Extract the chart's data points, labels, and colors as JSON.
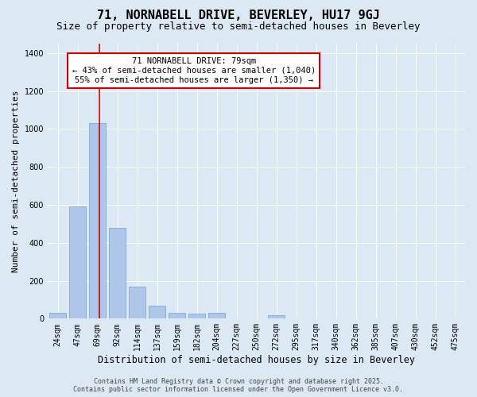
{
  "title_line1": "71, NORNABELL DRIVE, BEVERLEY, HU17 9GJ",
  "title_line2": "Size of property relative to semi-detached houses in Beverley",
  "xlabel": "Distribution of semi-detached houses by size in Beverley",
  "ylabel": "Number of semi-detached properties",
  "categories": [
    "24sqm",
    "47sqm",
    "69sqm",
    "92sqm",
    "114sqm",
    "137sqm",
    "159sqm",
    "182sqm",
    "204sqm",
    "227sqm",
    "250sqm",
    "272sqm",
    "295sqm",
    "317sqm",
    "340sqm",
    "362sqm",
    "385sqm",
    "407sqm",
    "430sqm",
    "452sqm",
    "475sqm"
  ],
  "values": [
    30,
    590,
    1030,
    480,
    170,
    70,
    30,
    25,
    30,
    0,
    0,
    20,
    0,
    0,
    0,
    0,
    0,
    0,
    0,
    0,
    0
  ],
  "bar_color": "#aec6e8",
  "bar_edge_color": "#7aadd4",
  "vline_color": "#cc0000",
  "vline_x": 2.1,
  "annotation_text": "71 NORNABELL DRIVE: 79sqm\n← 43% of semi-detached houses are smaller (1,040)\n55% of semi-detached houses are larger (1,350) →",
  "annotation_box_color": "#ffffff",
  "annotation_border_color": "#cc0000",
  "ylim": [
    0,
    1450
  ],
  "yticks": [
    0,
    200,
    400,
    600,
    800,
    1000,
    1200,
    1400
  ],
  "background_color": "#dce9f5",
  "footer_line1": "Contains HM Land Registry data © Crown copyright and database right 2025.",
  "footer_line2": "Contains public sector information licensed under the Open Government Licence v3.0.",
  "title_fontsize": 11,
  "subtitle_fontsize": 9,
  "xlabel_fontsize": 8.5,
  "ylabel_fontsize": 8,
  "tick_fontsize": 7,
  "annotation_fontsize": 7.5,
  "footer_fontsize": 6
}
